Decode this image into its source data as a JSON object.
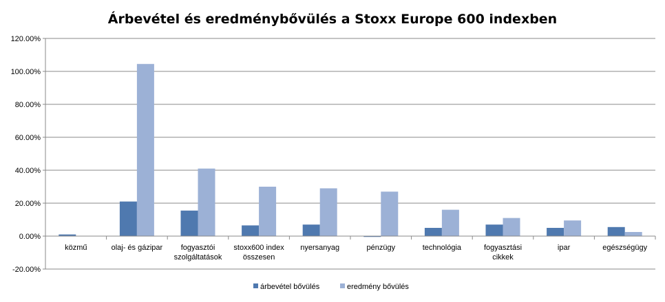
{
  "chart_data": {
    "type": "bar",
    "title": "Árbevétel és eredménybővülés a Stoxx Europe 600 indexben",
    "categories": [
      [
        "közmű"
      ],
      [
        "olaj- és gázipar"
      ],
      [
        "fogyasztói",
        "szolgáltatások"
      ],
      [
        "stoxx600 index",
        "összesen"
      ],
      [
        "nyersanyag"
      ],
      [
        "pénzügy"
      ],
      [
        "technológia"
      ],
      [
        "fogyasztási",
        "cikkek"
      ],
      [
        "ipar"
      ],
      [
        "egészségügy"
      ]
    ],
    "series": [
      {
        "name": "árbevétel bővülés",
        "color": "#4F79AF",
        "values": [
          1.0,
          21.0,
          15.5,
          6.5,
          7.0,
          -0.5,
          5.0,
          7.0,
          5.0,
          5.5
        ]
      },
      {
        "name": "eredmény bővülés",
        "color": "#9CB1D6",
        "values": [
          0.0,
          104.5,
          41.0,
          30.0,
          29.0,
          27.0,
          16.0,
          11.0,
          9.5,
          2.5
        ]
      }
    ],
    "ylim": [
      -20,
      120
    ],
    "yticks": [
      "-20.00%",
      "0.00%",
      "20.00%",
      "40.00%",
      "60.00%",
      "80.00%",
      "100.00%",
      "120.00%"
    ],
    "ytick_values": [
      -20,
      0,
      20,
      40,
      60,
      80,
      100,
      120
    ],
    "grid": true,
    "legend_position": "bottom"
  }
}
